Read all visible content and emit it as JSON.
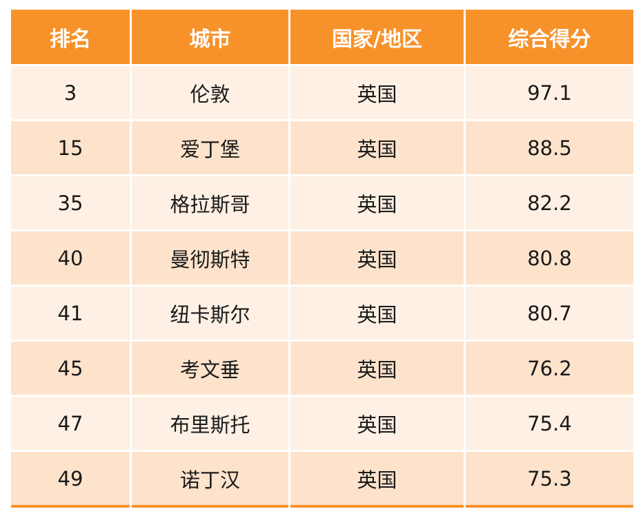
{
  "colors": {
    "header_bg": "#f7922b",
    "row_light": "#fef0e4",
    "row_dark": "#fde3cc",
    "header_text": "#ffffff",
    "body_text": "#1a1a1a"
  },
  "table": {
    "headers": [
      "排名",
      "城市",
      "国家/地区",
      "综合得分"
    ],
    "rows": [
      {
        "rank": "3",
        "city": "伦敦",
        "country": "英国",
        "score": "97.1"
      },
      {
        "rank": "15",
        "city": "爱丁堡",
        "country": "英国",
        "score": "88.5"
      },
      {
        "rank": "35",
        "city": "格拉斯哥",
        "country": "英国",
        "score": "82.2"
      },
      {
        "rank": "40",
        "city": "曼彻斯特",
        "country": "英国",
        "score": "80.8"
      },
      {
        "rank": "41",
        "city": "纽卡斯尔",
        "country": "英国",
        "score": "80.7"
      },
      {
        "rank": "45",
        "city": "考文垂",
        "country": "英国",
        "score": "76.2"
      },
      {
        "rank": "47",
        "city": "布里斯托",
        "country": "英国",
        "score": "75.4"
      },
      {
        "rank": "49",
        "city": "诺丁汉",
        "country": "英国",
        "score": "75.3"
      }
    ]
  }
}
